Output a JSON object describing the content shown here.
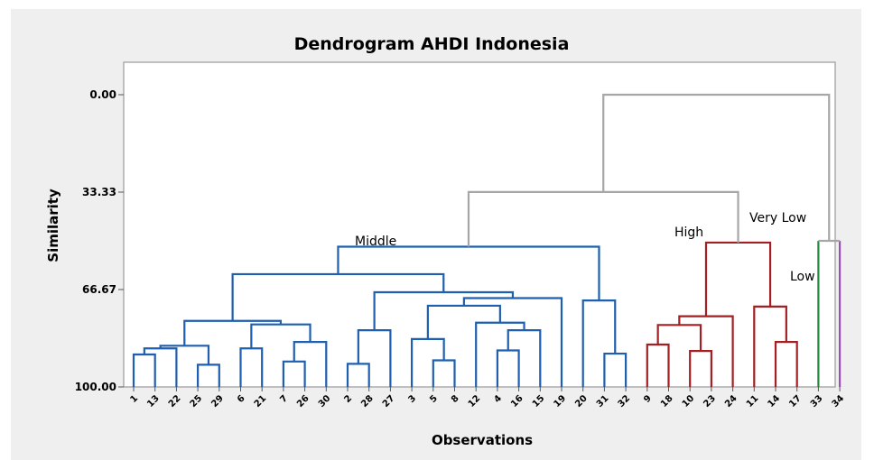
{
  "chart_data": {
    "type": "dendrogram",
    "title": "Dendrogram AHDI Indonesia",
    "xlabel": "Observations",
    "ylabel": "Similarity",
    "ylim": [
      100,
      0
    ],
    "yticks": [
      "0.00",
      "33.33",
      "66.67",
      "100.00"
    ],
    "ytick_values": [
      0,
      33.33,
      66.67,
      100
    ],
    "leaves": [
      "1",
      "13",
      "22",
      "25",
      "29",
      "6",
      "21",
      "7",
      "26",
      "30",
      "2",
      "28",
      "27",
      "3",
      "5",
      "8",
      "12",
      "4",
      "16",
      "15",
      "19",
      "20",
      "31",
      "32",
      "9",
      "18",
      "10",
      "23",
      "24",
      "11",
      "14",
      "17",
      "33",
      "34"
    ],
    "colors": {
      "middle": "#1f5fb0",
      "high": "#a31f24",
      "low": "#1f8a3c",
      "very_low": "#9b4fb5",
      "root": "#a6a6a6"
    },
    "merges": [
      [
        0,
        1,
        88.9,
        "middle"
      ],
      [
        2,
        4,
        87.4,
        "middle"
      ],
      [
        3,
        4,
        85.7,
        "middle"
      ],
      [
        6,
        9,
        89.5,
        "middle"
      ],
      [
        11,
        14,
        96.4,
        "middle"
      ],
      [
        15,
        18,
        95.7,
        "middle"
      ],
      [
        16,
        17,
        86.4,
        "middle"
      ],
      [
        17,
        5,
        85.3,
        "middle"
      ],
      [
        5,
        8,
        79.9,
        "middle"
      ],
      [
        7,
        8,
        82.4,
        "middle"
      ],
      [
        22,
        23,
        89.9,
        "middle"
      ],
      [
        12,
        27,
        82.7,
        "middle"
      ],
      [
        13,
        15,
        95.5,
        "middle"
      ],
      [
        29,
        20,
        82.9,
        "middle"
      ],
      [
        30,
        21,
        78.1,
        "middle"
      ],
      [
        31,
        28,
        78.1,
        "middle"
      ],
      [
        18,
        19,
        87.2,
        "middle"
      ],
      [
        16,
        33,
        81.5,
        "middle"
      ],
      [
        34,
        32,
        70.1,
        "middle"
      ],
      [
        32,
        35,
        68.5,
        "middle"
      ],
      [
        6,
        26,
        74.4,
        "middle"
      ],
      [
        35,
        37,
        70.5,
        "middle"
      ],
      [
        24,
        25,
        85.5,
        "middle"
      ],
      [
        26,
        21,
        64.8,
        "middle"
      ],
      [
        24,
        23,
        75.8,
        "middle"
      ],
      [
        27,
        28,
        72.9,
        "middle"
      ],
      [
        20,
        39,
        61.3,
        "middle"
      ],
      [
        10,
        36,
        64.4,
        "middle"
      ],
      [
        19,
        9,
        56.6,
        "middle"
      ],
      [
        38,
        40,
        61.1,
        "middle"
      ],
      [
        34,
        37,
        67.5,
        "middle"
      ],
      [
        42,
        43,
        51.4,
        "middle"
      ]
    ],
    "clusters": [
      {
        "name": "Middle",
        "leaves": [
          "1",
          "13",
          "22",
          "25",
          "29",
          "6",
          "21",
          "7",
          "26",
          "30",
          "2",
          "28",
          "27",
          "3",
          "5",
          "8",
          "12",
          "4",
          "16",
          "15",
          "19",
          "20",
          "31",
          "32"
        ]
      },
      {
        "name": "High",
        "leaves": [
          "9",
          "18",
          "10",
          "23",
          "24",
          "11",
          "14",
          "17"
        ]
      },
      {
        "name": "Low",
        "leaves": [
          "33"
        ]
      },
      {
        "name": "Very Low",
        "leaves": [
          "34"
        ]
      }
    ],
    "tree": {
      "left": {
        "left": {
          "left": {
            "left": {
              "left": {
                "left": {
                  "left": {
                    "leaf": 0
                  },
                  "right": {
                    "leaf": 1
                  },
                  "h": 88.9
                },
                "right": {
                  "leaf": 2
                },
                "h": 87.3
              },
              "right": {
                "left": {
                  "leaf": 3
                },
                "right": {
                  "leaf": 4
                },
                "h": 92.1
              },
              "h": 85.9
            },
            "right": {
              "left": {
                "left": {
                  "leaf": 5
                },
                "right": {
                  "leaf": 6
                },
                "h": 86.8
              },
              "right": {
                "left": {
                  "left": {
                    "leaf": 7
                  },
                  "right": {
                    "leaf": 8
                  },
                  "h": 91.3
                },
                "right": {
                  "leaf": 9
                },
                "h": 84.6
              },
              "h": 78.6
            },
            "h": 77.4
          },
          "right": {
            "left": {
              "left": {
                "left": {
                  "leaf": 10
                },
                "right": {
                  "leaf": 11
                },
                "h": 92.1
              },
              "right": {
                "leaf": 12
              },
              "h": 80.6
            },
            "right": {
              "left": {
                "left": {
                  "leaf": 13
                },
                "right": {
                  "leaf": 14,
                  "_r": 1
                },
                "h": 84.1
              },
              "right": {
                "left": {
                  "left": {
                    "left": {
                      "leaf": 15
                    },
                    "right": {
                      "leaf": 16
                    },
                    "h": 91.3
                  },
                  "right": {
                    "leaf": 17
                  },
                  "h": 78.3
                },
                "right": {
                  "left": {
                    "left": {
                      "leaf": 18
                    },
                    "right": {
                      "leaf": 19
                    },
                    "h": 86.2
                  },
                  "right": {
                    "leaf": 20
                  },
                  "h": 80.6
                },
                "h": 71.8
              },
              "h": 69.5
            },
            "h": 67.6
          },
          "h": 61.1
        },
        "right": {
          "left": {
            "left": {
              "leaf": 21,
              "_x": 1
            },
            "right": {
              "leaf": 21
            },
            "h": 74.7
          },
          "right": {
            "left": {
              "leaf": 22
            },
            "right": {
              "leaf": 23
            },
            "h": 89.3
          },
          "h": 67.6
        },
        "h": 51.5
      },
      "right": {},
      "h": 33.3
    }
  }
}
